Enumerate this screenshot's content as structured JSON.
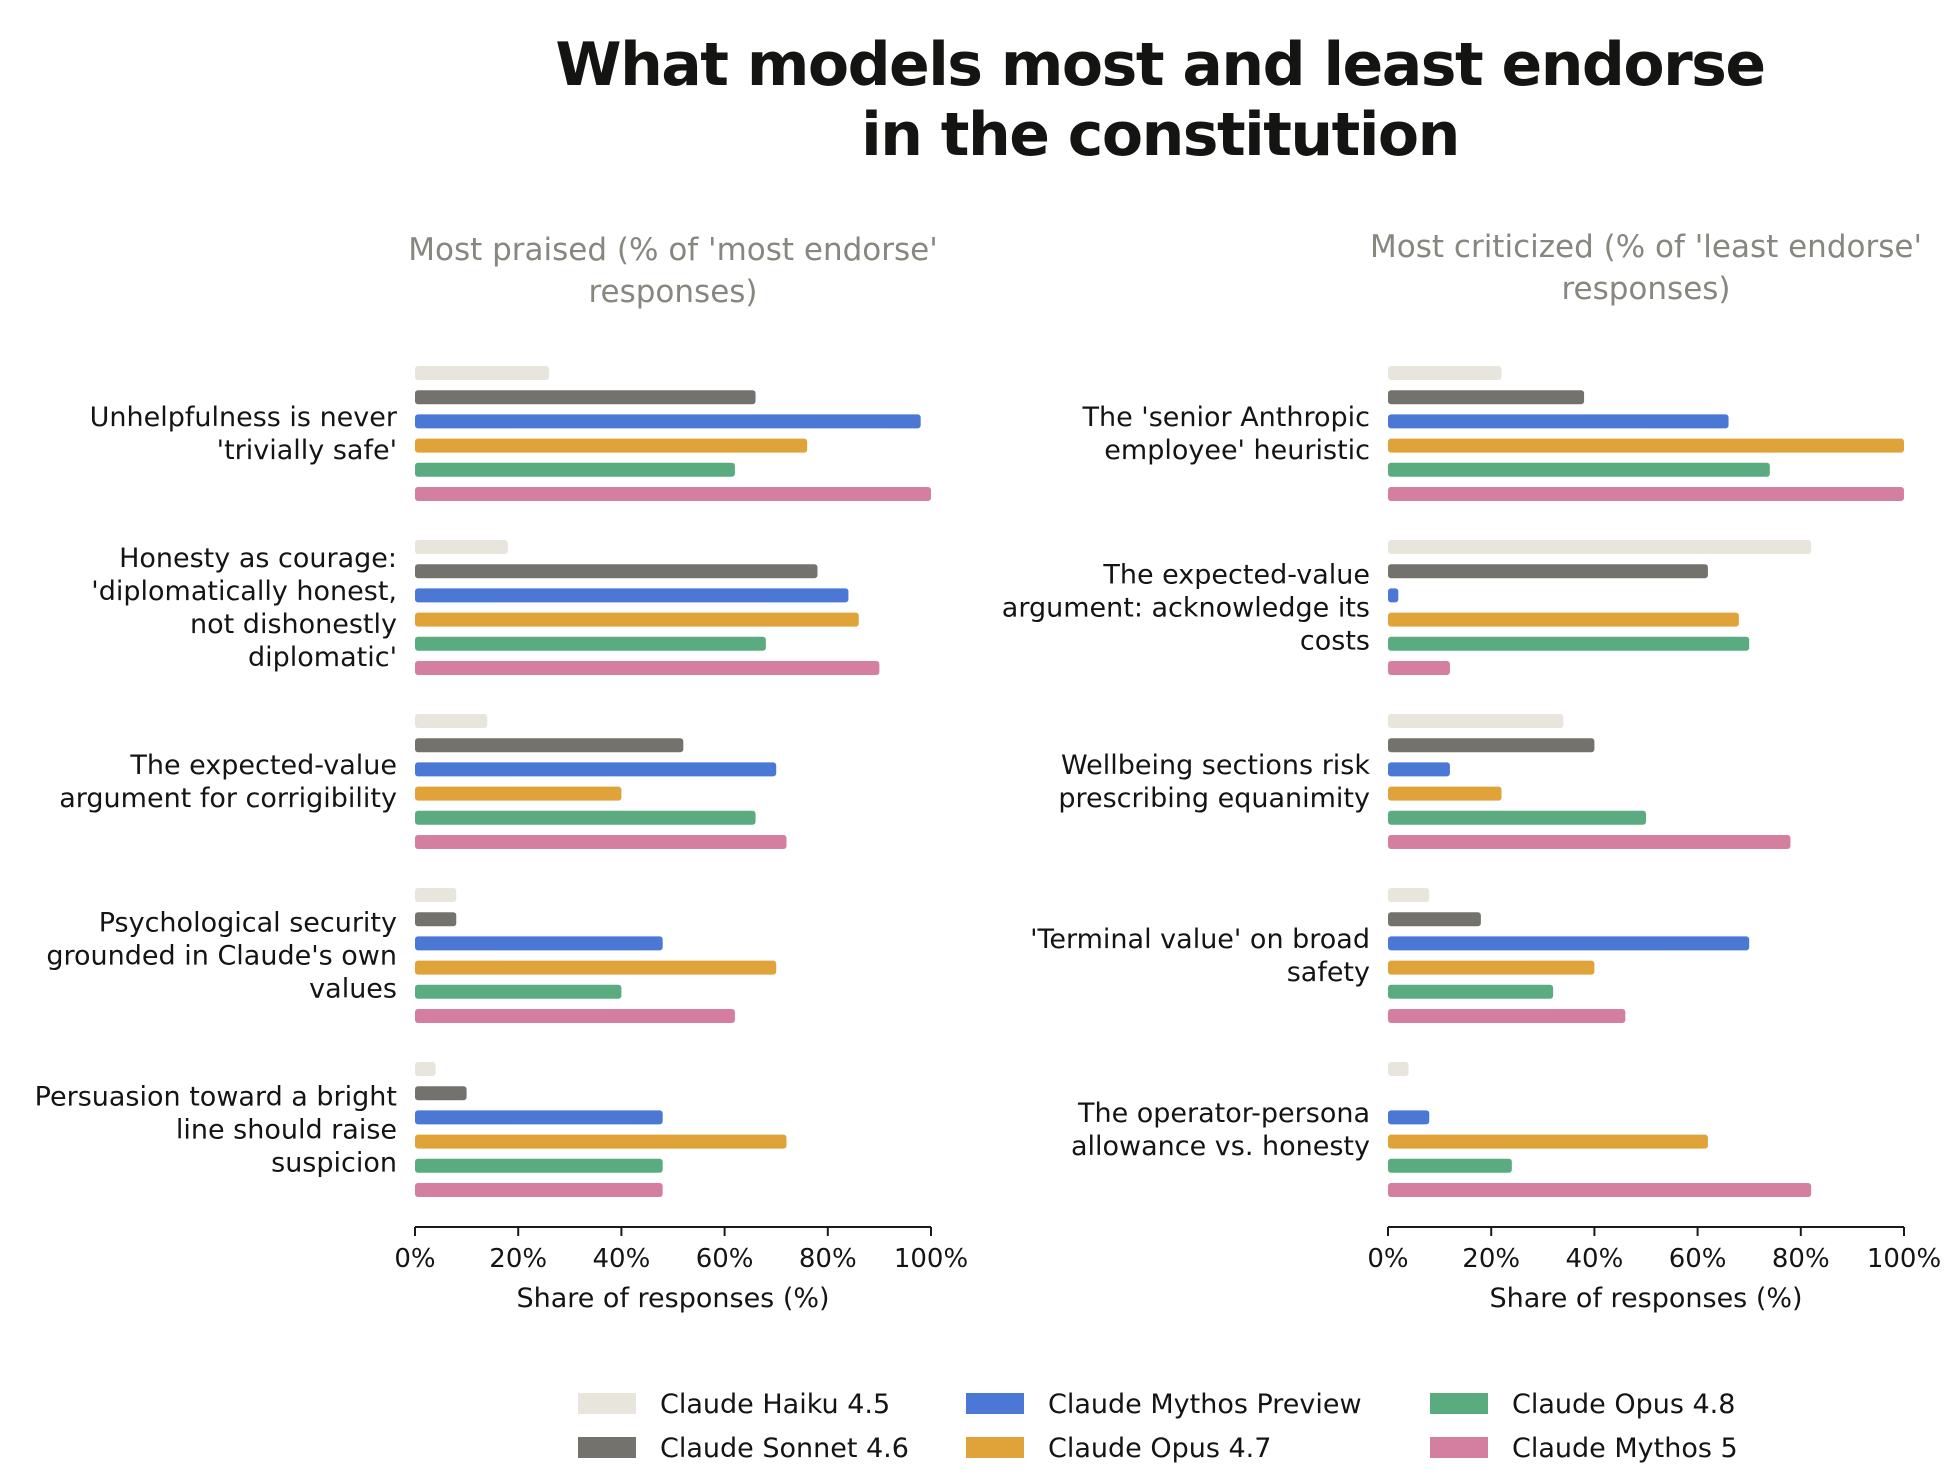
{
  "title_line1": "What models most and least endorse",
  "title_line2": "in the constitution",
  "legend": {
    "series": [
      {
        "name": "Claude Haiku 4.5",
        "color": "#e8e6dc"
      },
      {
        "name": "Claude Sonnet 4.6",
        "color": "#73726c"
      },
      {
        "name": "Claude Mythos Preview",
        "color": "#4a78d4"
      },
      {
        "name": "Claude Opus 4.7",
        "color": "#e0a33a"
      },
      {
        "name": "Claude Opus 4.8",
        "color": "#5aab80"
      },
      {
        "name": "Claude Mythos 5",
        "color": "#d47fa0"
      }
    ]
  },
  "chart_data": [
    {
      "type": "bar",
      "orientation": "horizontal",
      "title_line1": "Most praised (% of 'most endorse'",
      "title_line2": "responses)",
      "xlabel": "Share of responses (%)",
      "xlim": [
        0,
        100
      ],
      "xticks": [
        "0%",
        "20%",
        "40%",
        "60%",
        "80%",
        "100%"
      ],
      "categories": [
        [
          "Unhelpfulness is never",
          "'trivially safe'"
        ],
        [
          "Honesty as courage:",
          "'diplomatically honest,",
          "not dishonestly",
          "diplomatic'"
        ],
        [
          "The expected-value",
          "argument for corrigibility"
        ],
        [
          "Psychological security",
          "grounded in Claude's own",
          "values"
        ],
        [
          "Persuasion toward a bright",
          "line should raise",
          "suspicion"
        ]
      ],
      "series": [
        {
          "name": "Claude Haiku 4.5",
          "values": [
            26,
            18,
            14,
            8,
            4
          ]
        },
        {
          "name": "Claude Sonnet 4.6",
          "values": [
            66,
            78,
            52,
            8,
            10
          ]
        },
        {
          "name": "Claude Mythos Preview",
          "values": [
            98,
            84,
            70,
            48,
            48
          ]
        },
        {
          "name": "Claude Opus 4.7",
          "values": [
            76,
            86,
            40,
            70,
            72
          ]
        },
        {
          "name": "Claude Opus 4.8",
          "values": [
            62,
            68,
            66,
            40,
            48
          ]
        },
        {
          "name": "Claude Mythos 5",
          "values": [
            100,
            90,
            72,
            62,
            48
          ]
        }
      ]
    },
    {
      "type": "bar",
      "orientation": "horizontal",
      "title_line1": "Most criticized (% of 'least endorse'",
      "title_line2": "responses)",
      "xlabel": "Share of responses (%)",
      "xlim": [
        0,
        100
      ],
      "xticks": [
        "0%",
        "20%",
        "40%",
        "60%",
        "80%",
        "100%"
      ],
      "categories": [
        [
          "The 'senior Anthropic",
          "employee' heuristic"
        ],
        [
          "The expected-value",
          "argument: acknowledge its",
          "costs"
        ],
        [
          "Wellbeing sections risk",
          "prescribing equanimity"
        ],
        [
          "'Terminal value' on broad",
          "safety"
        ],
        [
          "The operator-persona",
          "allowance vs. honesty"
        ]
      ],
      "series": [
        {
          "name": "Claude Haiku 4.5",
          "values": [
            22,
            82,
            34,
            8,
            4
          ]
        },
        {
          "name": "Claude Sonnet 4.6",
          "values": [
            38,
            62,
            40,
            18,
            0
          ]
        },
        {
          "name": "Claude Mythos Preview",
          "values": [
            66,
            2,
            12,
            70,
            8
          ]
        },
        {
          "name": "Claude Opus 4.7",
          "values": [
            100,
            68,
            22,
            40,
            62
          ]
        },
        {
          "name": "Claude Opus 4.8",
          "values": [
            74,
            70,
            50,
            32,
            24
          ]
        },
        {
          "name": "Claude Mythos 5",
          "values": [
            100,
            12,
            78,
            46,
            82
          ]
        }
      ]
    }
  ]
}
